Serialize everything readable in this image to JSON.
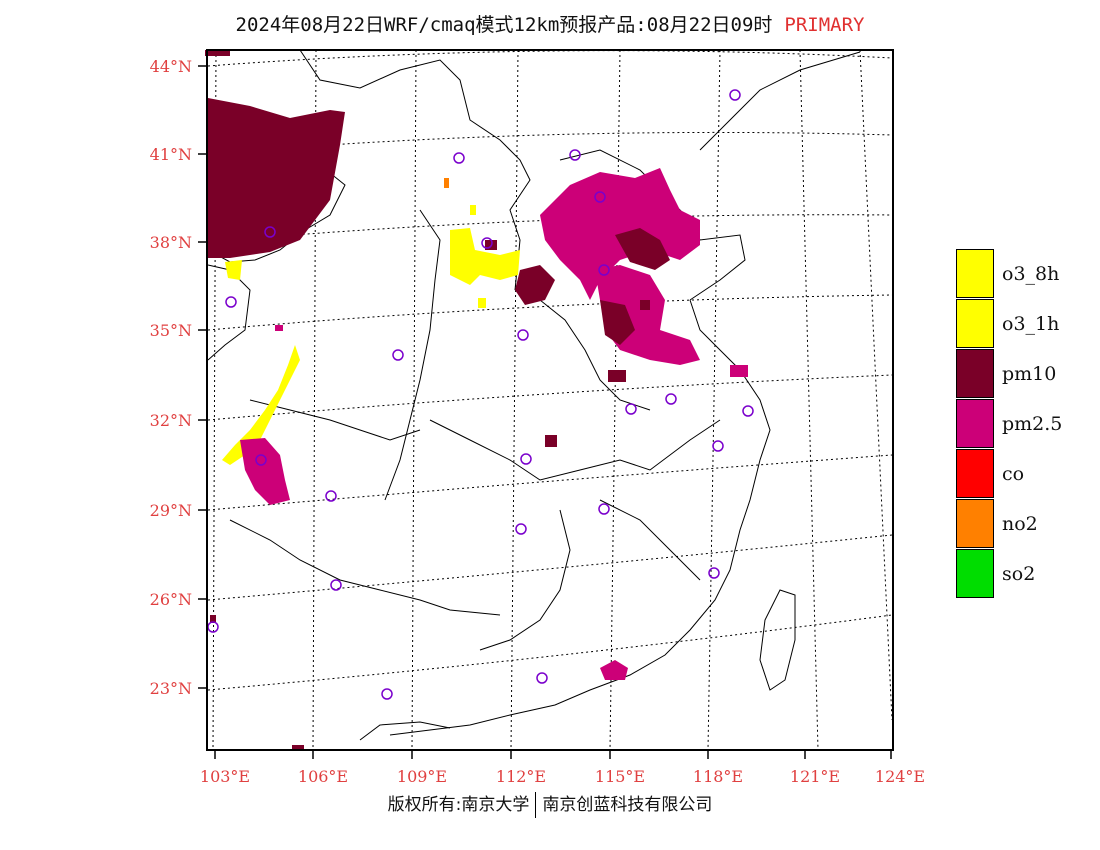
{
  "title": {
    "main": "2024年08月22日WRF/cmaq模式12km预报产品:08月22日09时",
    "tag": "PRIMARY"
  },
  "map": {
    "lat_labels": [
      "44°N",
      "41°N",
      "38°N",
      "35°N",
      "32°N",
      "29°N",
      "26°N",
      "23°N"
    ],
    "lon_labels": [
      "103°E",
      "106°E",
      "109°E",
      "112°E",
      "115°E",
      "118°E",
      "121°E",
      "124°E"
    ],
    "lat_values": [
      44,
      41,
      38,
      35,
      32,
      29,
      26,
      23
    ],
    "lon_values": [
      103,
      106,
      109,
      112,
      115,
      118,
      121,
      124
    ]
  },
  "legend": {
    "items": [
      {
        "label": "o3_8h",
        "color": "#ffff00"
      },
      {
        "label": "o3_1h",
        "color": "#ffff00"
      },
      {
        "label": "pm10",
        "color": "#7a0028"
      },
      {
        "label": "pm2.5",
        "color": "#cc0078"
      },
      {
        "label": "co",
        "color": "#ff0000"
      },
      {
        "label": "no2",
        "color": "#ff8000"
      },
      {
        "label": "so2",
        "color": "#00dd00"
      }
    ]
  },
  "footer": {
    "left": "版权所有:南京大学",
    "right": "南京创蓝科技有限公司"
  }
}
